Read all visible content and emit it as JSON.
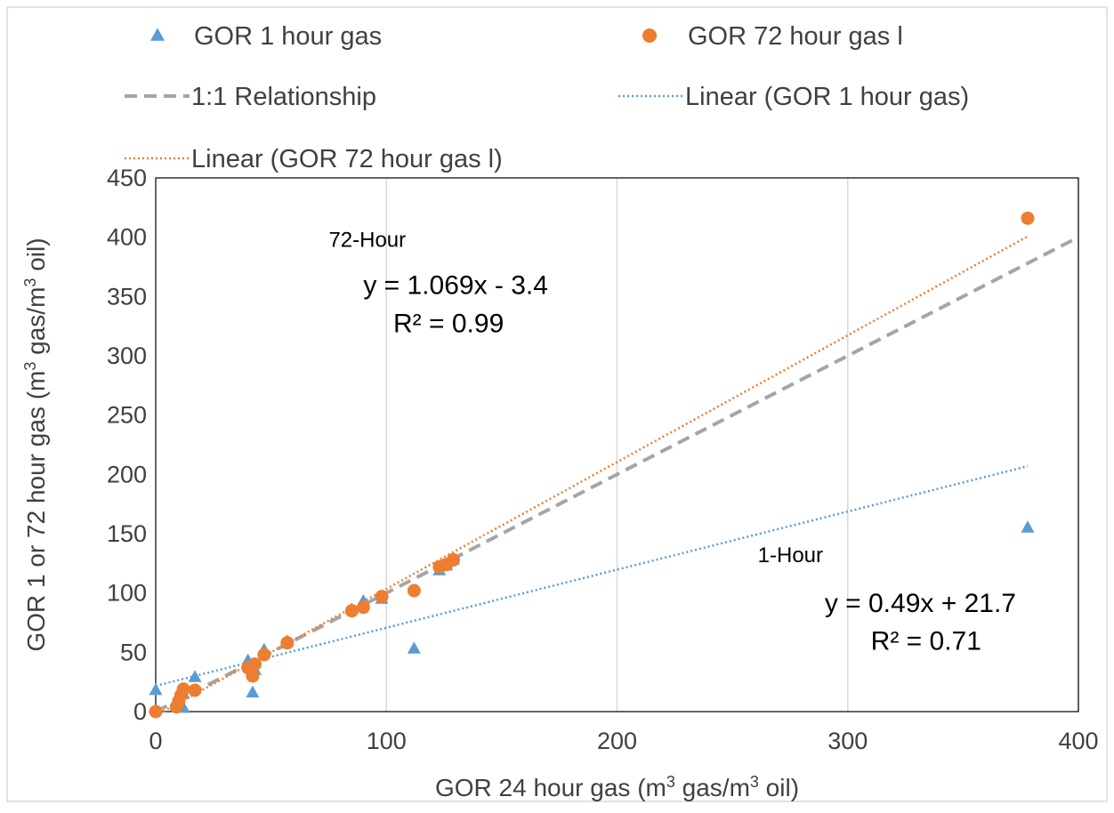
{
  "chart_data": {
    "type": "scatter",
    "xlabel": {
      "pre": "GOR 24 hour gas (m",
      "sup": "3",
      "mid": " gas/m",
      "sup2": "3",
      "post": " oil)"
    },
    "ylabel": {
      "pre": "GOR 1 or 72 hour gas (m",
      "sup": "3",
      "mid": " gas/m",
      "sup2": "3",
      "post": " oil)"
    },
    "xlim": [
      0,
      400
    ],
    "ylim": [
      0,
      450
    ],
    "x_ticks": [
      0,
      100,
      200,
      300,
      400
    ],
    "y_ticks": [
      0,
      50,
      100,
      150,
      200,
      250,
      300,
      350,
      400,
      450
    ],
    "grid": "vertical",
    "legend_position": "top",
    "legend": [
      {
        "label": "GOR 1 hour gas",
        "marker": "triangle",
        "color": "#5b9bd5"
      },
      {
        "label": "GOR 72 hour gas l",
        "marker": "circle",
        "color": "#ed7d31"
      },
      {
        "label": "1:1 Relationship",
        "line": "dashed",
        "color": "#a5a5a5"
      },
      {
        "label": "Linear (GOR 1 hour gas)",
        "line": "dotted",
        "color": "#5b9bd5"
      },
      {
        "label": "Linear (GOR 72 hour gas l)",
        "line": "dotted",
        "color": "#ed7d31"
      }
    ],
    "series": [
      {
        "name": "GOR 1 hour gas",
        "marker": "triangle",
        "color": "#5b9bd5",
        "points": [
          [
            0,
            18
          ],
          [
            9,
            5
          ],
          [
            10,
            8
          ],
          [
            12,
            3
          ],
          [
            12,
            15
          ],
          [
            17,
            29
          ],
          [
            40,
            43
          ],
          [
            42,
            16
          ],
          [
            43,
            35
          ],
          [
            47,
            52
          ],
          [
            57,
            59
          ],
          [
            85,
            86
          ],
          [
            90,
            93
          ],
          [
            98,
            95
          ],
          [
            112,
            53
          ],
          [
            123,
            119
          ],
          [
            126,
            123
          ],
          [
            129,
            128
          ],
          [
            378,
            155
          ]
        ]
      },
      {
        "name": "GOR 72 hour gas l",
        "marker": "circle",
        "color": "#ed7d31",
        "points": [
          [
            0,
            0
          ],
          [
            9,
            4
          ],
          [
            10,
            9
          ],
          [
            11,
            14
          ],
          [
            12,
            19
          ],
          [
            17,
            18
          ],
          [
            40,
            37
          ],
          [
            42,
            30
          ],
          [
            43,
            40
          ],
          [
            47,
            48
          ],
          [
            57,
            58
          ],
          [
            85,
            85
          ],
          [
            90,
            88
          ],
          [
            98,
            97
          ],
          [
            112,
            102
          ],
          [
            123,
            122
          ],
          [
            126,
            124
          ],
          [
            129,
            128
          ],
          [
            378,
            416
          ]
        ]
      }
    ],
    "lines": [
      {
        "name": "1:1 Relationship",
        "style": "dashed",
        "color": "#a5a5a5",
        "x": [
          0,
          400
        ],
        "y": [
          0,
          400
        ]
      },
      {
        "name": "Linear (GOR 1 hour gas)",
        "style": "dotted",
        "color": "#5b9bd5",
        "x": [
          0,
          378
        ],
        "y": [
          21.7,
          206.9
        ]
      },
      {
        "name": "Linear (GOR 72 hour gas l)",
        "style": "dotted",
        "color": "#ed7d31",
        "x": [
          0,
          378
        ],
        "y": [
          -3.4,
          400.7
        ]
      }
    ],
    "annotations": [
      {
        "id": "label-72",
        "text": "72-Hour",
        "x": 75,
        "y": 392,
        "size": 24,
        "anchor": "start"
      },
      {
        "id": "eq-72",
        "text": "y = 1.069x - 3.4",
        "x": 90,
        "y": 352,
        "size": 30,
        "anchor": "start"
      },
      {
        "id": "r2-72",
        "text": "R² = 0.99",
        "x": 103,
        "y": 320,
        "size": 30,
        "anchor": "start"
      },
      {
        "id": "label-1",
        "text": "1-Hour",
        "x": 261,
        "y": 126,
        "size": 24,
        "anchor": "start"
      },
      {
        "id": "eq-1",
        "text": "y = 0.49x + 21.7",
        "x": 290,
        "y": 84,
        "size": 30,
        "anchor": "start"
      },
      {
        "id": "r2-1",
        "text": "R² = 0.71",
        "x": 310,
        "y": 52,
        "size": 30,
        "anchor": "start"
      }
    ]
  }
}
